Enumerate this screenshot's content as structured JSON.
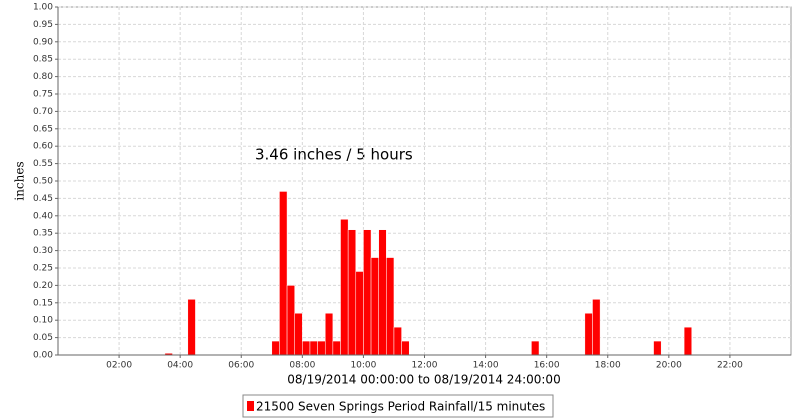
{
  "chart_data": {
    "type": "bar",
    "annotation": "3.46 inches / 5 hours",
    "x_label": "08/19/2014 00:00:00 to 08/19/2014 24:00:00",
    "y_label": "inches",
    "interval": 0.25,
    "series": [
      {
        "name": "21500 Seven Springs Period Rainfall/15 minutes",
        "color": "#ff0000",
        "x": [
          3.5,
          4.25,
          7,
          7.25,
          7.5,
          7.75,
          8,
          8.25,
          8.5,
          8.75,
          9,
          9.25,
          9.5,
          9.75,
          10,
          10.25,
          10.5,
          10.75,
          11,
          11.25,
          15.5,
          17.25,
          17.5,
          19.5,
          20.5
        ],
        "values": [
          0.005,
          0.16,
          0.04,
          0.47,
          0.2,
          0.12,
          0.04,
          0.04,
          0.04,
          0.12,
          0.04,
          0.39,
          0.36,
          0.24,
          0.36,
          0.28,
          0.36,
          0.28,
          0.08,
          0.04,
          0.04,
          0.12,
          0.16,
          0.04,
          0.08
        ]
      }
    ],
    "xlim": [
      0,
      24
    ],
    "xticks": [
      {
        "value": 2,
        "label": "02:00"
      },
      {
        "value": 4,
        "label": "04:00"
      },
      {
        "value": 6,
        "label": "06:00"
      },
      {
        "value": 8,
        "label": "08:00"
      },
      {
        "value": 10,
        "label": "10:00"
      },
      {
        "value": 12,
        "label": "12:00"
      },
      {
        "value": 14,
        "label": "14:00"
      },
      {
        "value": 16,
        "label": "16:00"
      },
      {
        "value": 18,
        "label": "18:00"
      },
      {
        "value": 20,
        "label": "20:00"
      },
      {
        "value": 22,
        "label": "22:00"
      }
    ],
    "ylim": [
      0,
      1
    ],
    "yticks": [
      {
        "value": 0,
        "label": "0.00"
      },
      {
        "value": 0.05,
        "label": "0.05"
      },
      {
        "value": 0.1,
        "label": "0.10"
      },
      {
        "value": 0.15,
        "label": "0.15"
      },
      {
        "value": 0.2,
        "label": "0.20"
      },
      {
        "value": 0.25,
        "label": "0.25"
      },
      {
        "value": 0.3,
        "label": "0.30"
      },
      {
        "value": 0.35,
        "label": "0.35"
      },
      {
        "value": 0.4,
        "label": "0.40"
      },
      {
        "value": 0.45,
        "label": "0.45"
      },
      {
        "value": 0.5,
        "label": "0.50"
      },
      {
        "value": 0.55,
        "label": "0.55"
      },
      {
        "value": 0.6,
        "label": "0.60"
      },
      {
        "value": 0.65,
        "label": "0.65"
      },
      {
        "value": 0.7,
        "label": "0.70"
      },
      {
        "value": 0.75,
        "label": "0.75"
      },
      {
        "value": 0.8,
        "label": "0.80"
      },
      {
        "value": 0.85,
        "label": "0.85"
      },
      {
        "value": 0.9,
        "label": "0.90"
      },
      {
        "value": 0.95,
        "label": "0.95"
      },
      {
        "value": 1,
        "label": "1.00"
      }
    ],
    "grid": true
  }
}
